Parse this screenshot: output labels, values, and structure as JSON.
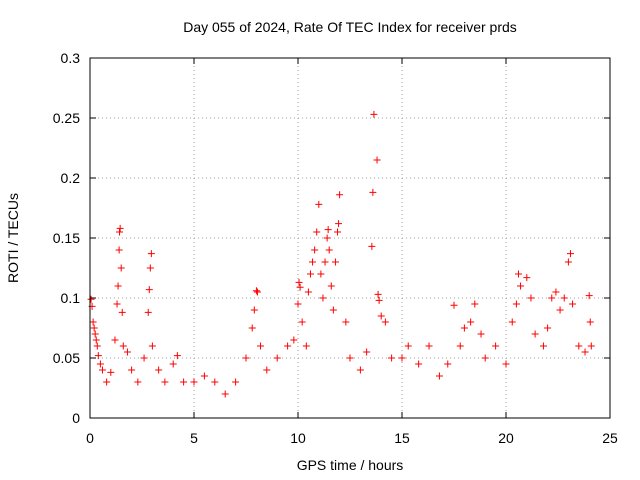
{
  "chart_data": {
    "type": "scatter",
    "title": "Day 055 of 2024, Rate Of TEC Index for receiver prds",
    "xlabel": "GPS time / hours",
    "ylabel": "ROTI / TECUs",
    "xlim": [
      0,
      25
    ],
    "ylim": [
      0,
      0.3
    ],
    "x_ticks": [
      0,
      5,
      10,
      15,
      20,
      25
    ],
    "x_tick_labels": [
      "0",
      "5",
      "10",
      "15",
      "20",
      "25"
    ],
    "y_ticks": [
      0,
      0.05,
      0.1,
      0.15,
      0.2,
      0.25,
      0.3
    ],
    "y_tick_labels": [
      "0",
      "0.05",
      "0.1",
      "0.15",
      "0.2",
      "0.25",
      "0.3"
    ],
    "grid": true,
    "marker": "+",
    "series": [
      {
        "color": "#ff0000",
        "points": [
          [
            0.05,
            0.099
          ],
          [
            0.1,
            0.093
          ],
          [
            0.15,
            0.08
          ],
          [
            0.2,
            0.075
          ],
          [
            0.25,
            0.07
          ],
          [
            0.3,
            0.065
          ],
          [
            0.35,
            0.06
          ],
          [
            0.4,
            0.052
          ],
          [
            0.5,
            0.045
          ],
          [
            0.6,
            0.04
          ],
          [
            0.8,
            0.03
          ],
          [
            1.0,
            0.038
          ],
          [
            1.2,
            0.065
          ],
          [
            1.3,
            0.095
          ],
          [
            1.35,
            0.11
          ],
          [
            1.4,
            0.14
          ],
          [
            1.42,
            0.155
          ],
          [
            1.45,
            0.158
          ],
          [
            1.5,
            0.125
          ],
          [
            1.55,
            0.088
          ],
          [
            1.6,
            0.06
          ],
          [
            1.8,
            0.055
          ],
          [
            2.0,
            0.04
          ],
          [
            2.3,
            0.03
          ],
          [
            2.6,
            0.05
          ],
          [
            2.8,
            0.088
          ],
          [
            2.85,
            0.107
          ],
          [
            2.9,
            0.125
          ],
          [
            2.95,
            0.137
          ],
          [
            3.0,
            0.06
          ],
          [
            3.3,
            0.04
          ],
          [
            3.6,
            0.03
          ],
          [
            4.0,
            0.045
          ],
          [
            4.2,
            0.052
          ],
          [
            4.5,
            0.03
          ],
          [
            5.0,
            0.03
          ],
          [
            5.5,
            0.035
          ],
          [
            6.0,
            0.03
          ],
          [
            6.5,
            0.02
          ],
          [
            7.0,
            0.03
          ],
          [
            7.5,
            0.05
          ],
          [
            7.8,
            0.075
          ],
          [
            7.9,
            0.09
          ],
          [
            8.0,
            0.106
          ],
          [
            8.05,
            0.105
          ],
          [
            8.2,
            0.06
          ],
          [
            8.5,
            0.04
          ],
          [
            9.0,
            0.05
          ],
          [
            9.5,
            0.06
          ],
          [
            9.8,
            0.065
          ],
          [
            10.0,
            0.095
          ],
          [
            10.05,
            0.113
          ],
          [
            10.1,
            0.109
          ],
          [
            10.2,
            0.08
          ],
          [
            10.4,
            0.06
          ],
          [
            10.5,
            0.105
          ],
          [
            10.6,
            0.12
          ],
          [
            10.7,
            0.13
          ],
          [
            10.8,
            0.14
          ],
          [
            10.9,
            0.155
          ],
          [
            11.0,
            0.178
          ],
          [
            11.1,
            0.12
          ],
          [
            11.2,
            0.1
          ],
          [
            11.3,
            0.13
          ],
          [
            11.4,
            0.15
          ],
          [
            11.45,
            0.157
          ],
          [
            11.5,
            0.14
          ],
          [
            11.6,
            0.11
          ],
          [
            11.7,
            0.09
          ],
          [
            11.8,
            0.13
          ],
          [
            11.9,
            0.155
          ],
          [
            11.95,
            0.162
          ],
          [
            12.0,
            0.186
          ],
          [
            12.3,
            0.08
          ],
          [
            12.5,
            0.05
          ],
          [
            13.0,
            0.04
          ],
          [
            13.3,
            0.055
          ],
          [
            13.55,
            0.143
          ],
          [
            13.6,
            0.188
          ],
          [
            13.65,
            0.253
          ],
          [
            13.8,
            0.215
          ],
          [
            13.85,
            0.103
          ],
          [
            13.9,
            0.098
          ],
          [
            14.0,
            0.085
          ],
          [
            14.2,
            0.08
          ],
          [
            14.5,
            0.05
          ],
          [
            15.0,
            0.05
          ],
          [
            15.3,
            0.06
          ],
          [
            15.8,
            0.045
          ],
          [
            16.3,
            0.06
          ],
          [
            16.8,
            0.035
          ],
          [
            17.2,
            0.045
          ],
          [
            17.5,
            0.094
          ],
          [
            17.8,
            0.06
          ],
          [
            18.0,
            0.075
          ],
          [
            18.3,
            0.08
          ],
          [
            18.5,
            0.095
          ],
          [
            18.8,
            0.07
          ],
          [
            19.0,
            0.05
          ],
          [
            19.5,
            0.06
          ],
          [
            20.0,
            0.045
          ],
          [
            20.3,
            0.08
          ],
          [
            20.5,
            0.095
          ],
          [
            20.6,
            0.12
          ],
          [
            20.7,
            0.11
          ],
          [
            21.0,
            0.117
          ],
          [
            21.2,
            0.1
          ],
          [
            21.4,
            0.07
          ],
          [
            21.8,
            0.06
          ],
          [
            22.0,
            0.075
          ],
          [
            22.2,
            0.1
          ],
          [
            22.4,
            0.105
          ],
          [
            22.6,
            0.09
          ],
          [
            22.8,
            0.1
          ],
          [
            23.0,
            0.13
          ],
          [
            23.1,
            0.137
          ],
          [
            23.2,
            0.095
          ],
          [
            23.5,
            0.06
          ],
          [
            23.8,
            0.055
          ],
          [
            24.0,
            0.102
          ],
          [
            24.05,
            0.08
          ],
          [
            24.1,
            0.06
          ]
        ]
      }
    ]
  }
}
